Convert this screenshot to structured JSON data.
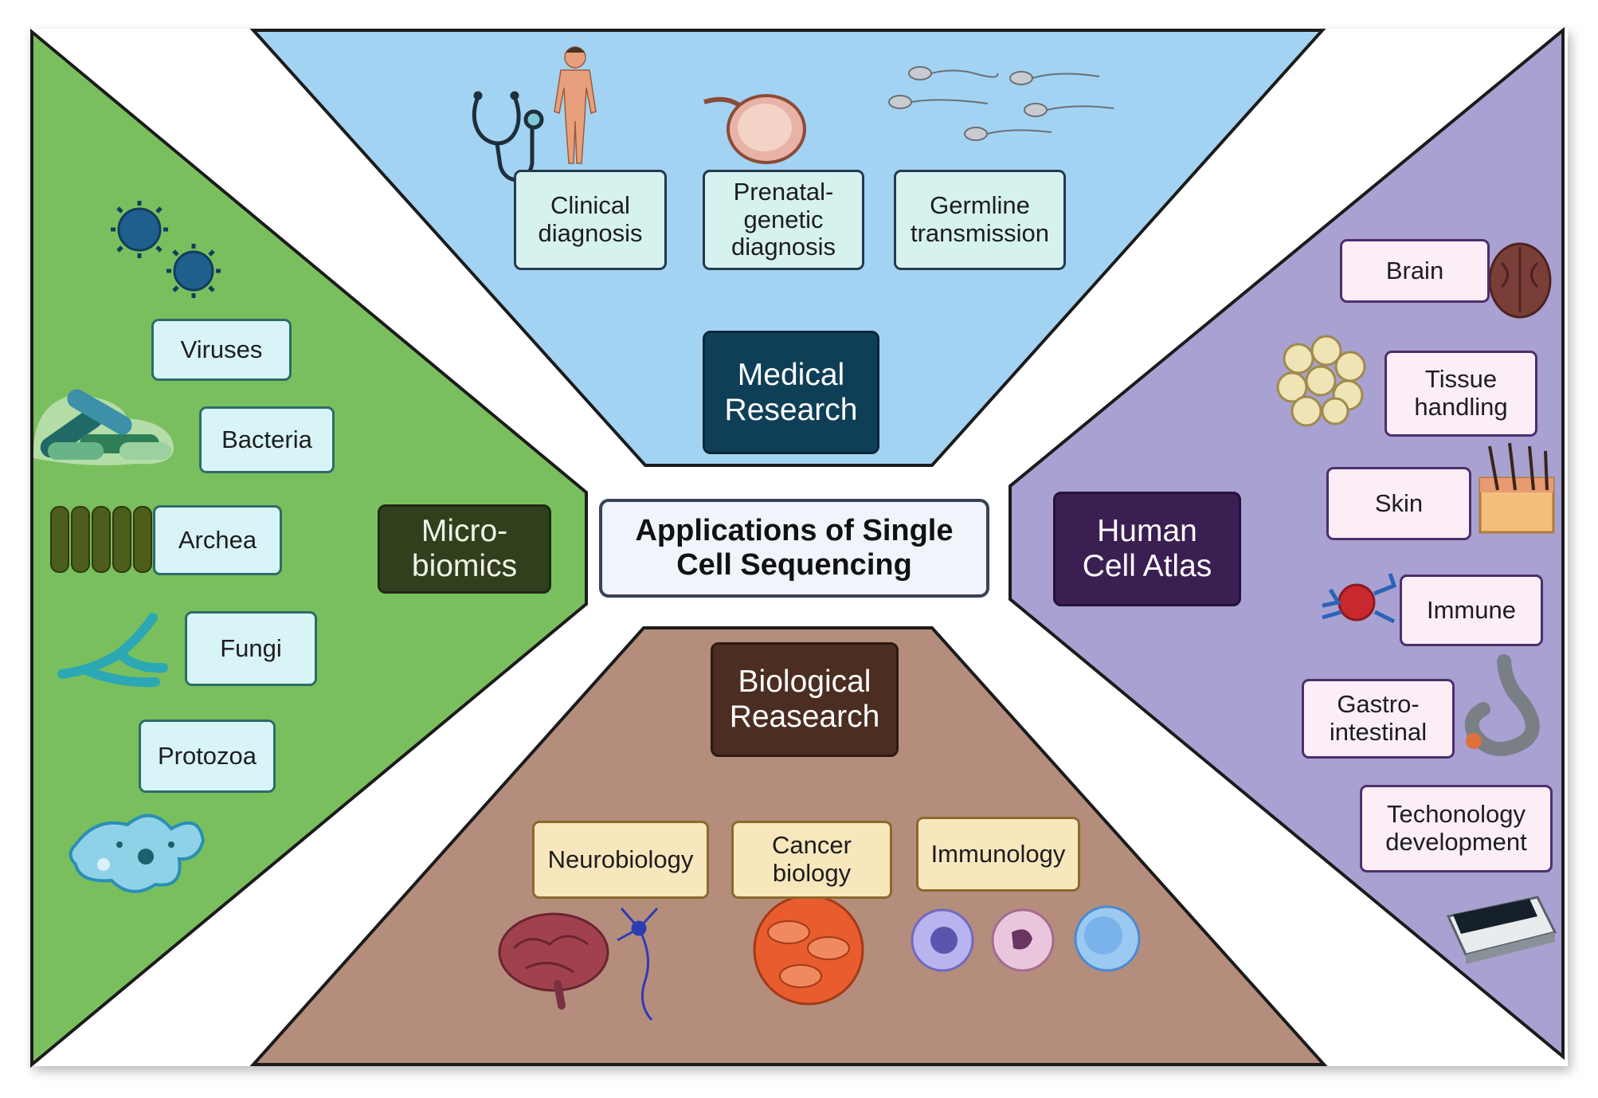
{
  "title": "Applications of Single Cell Sequencing",
  "colors": {
    "medical": "#a3d3f3",
    "microbiomics": "#7abf5e",
    "human_cell_atlas": "#a8a1d2",
    "biological": "#b58d7d"
  },
  "medical_research": {
    "title": "Medical Research",
    "items": [
      "Clinical diagnosis",
      "Prenatal- genetic diagnosis",
      "Germline transmission"
    ],
    "icons": [
      "stethoscope-icon",
      "human-body-icon",
      "fetus-icon",
      "sperm-icon"
    ]
  },
  "microbiomics": {
    "title": "Micro- biomics",
    "items": [
      "Viruses",
      "Bacteria",
      "Archea",
      "Fungi",
      "Protozoa"
    ],
    "icons": [
      "virus-icon",
      "bacteria-icon",
      "archea-icon",
      "fungi-icon",
      "protozoa-icon"
    ]
  },
  "human_cell_atlas": {
    "title": "Human Cell Atlas",
    "items": [
      "Brain",
      "Tissue handling",
      "Skin",
      "Immune",
      "Gastro- intestinal",
      "Techonology development"
    ],
    "icons": [
      "brain-icon",
      "tissue-icon",
      "skin-icon",
      "immune-cell-icon",
      "stomach-icon",
      "device-icon"
    ]
  },
  "biological_research": {
    "title": "Biological Reasearch",
    "items": [
      "Neurobiology",
      "Cancer biology",
      "Immunology"
    ],
    "icons": [
      "brain-icon",
      "neuron-icon",
      "cancer-cells-icon",
      "immune-cells-icon"
    ]
  }
}
